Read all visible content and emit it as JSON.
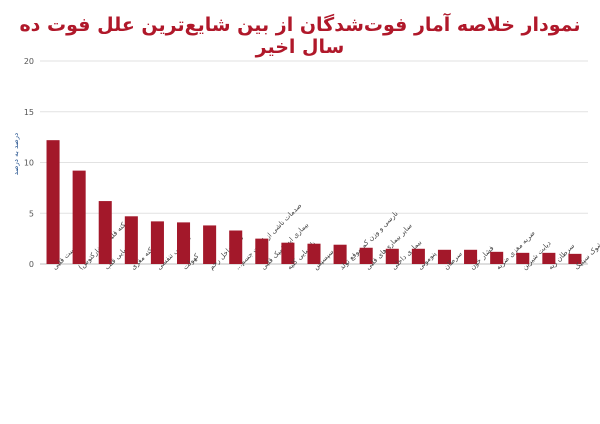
{
  "chart_data": {
    "type": "bar",
    "title": "نمودار خلاصه آمار فوت‌شدگان از بین شایع‌ترین علل فوت ده سال اخیر",
    "ylabel": "درصد به درصد",
    "xlabel": "",
    "ylim": [
      0,
      20
    ],
    "yticks": [
      0,
      5,
      10,
      15,
      20
    ],
    "grid": true,
    "legend": "none",
    "bar_color": "#a3182a",
    "categories": [
      "ایست قلبی",
      "سکته قلبی (انفارکتوس)",
      "نارسایی قلب",
      "سکته مغزی",
      "نارسایی تنفسی",
      "کهولت",
      "مرگ داخل رحم",
      "صدمات ناشی از امنیت جسم...",
      "بیماری ایسکمیک قلبی",
      "نارسایی کلیه",
      "سپسیس",
      "نارسی و وزن کم موقع تولد",
      "سایر بیماری‌های قلبی",
      "بیماری داخلی",
      "پنومونی",
      "سرطان",
      "فشار خون",
      "ضربه مغزی ضربه",
      "دیابت شیرین",
      "سرطان ریه",
      "شوک سپتیک"
    ],
    "values": [
      12.2,
      9.2,
      6.2,
      4.7,
      4.2,
      4.1,
      3.8,
      3.3,
      2.5,
      2.1,
      2.0,
      1.9,
      1.6,
      1.5,
      1.5,
      1.4,
      1.4,
      1.2,
      1.1,
      1.1,
      1.0
    ]
  }
}
